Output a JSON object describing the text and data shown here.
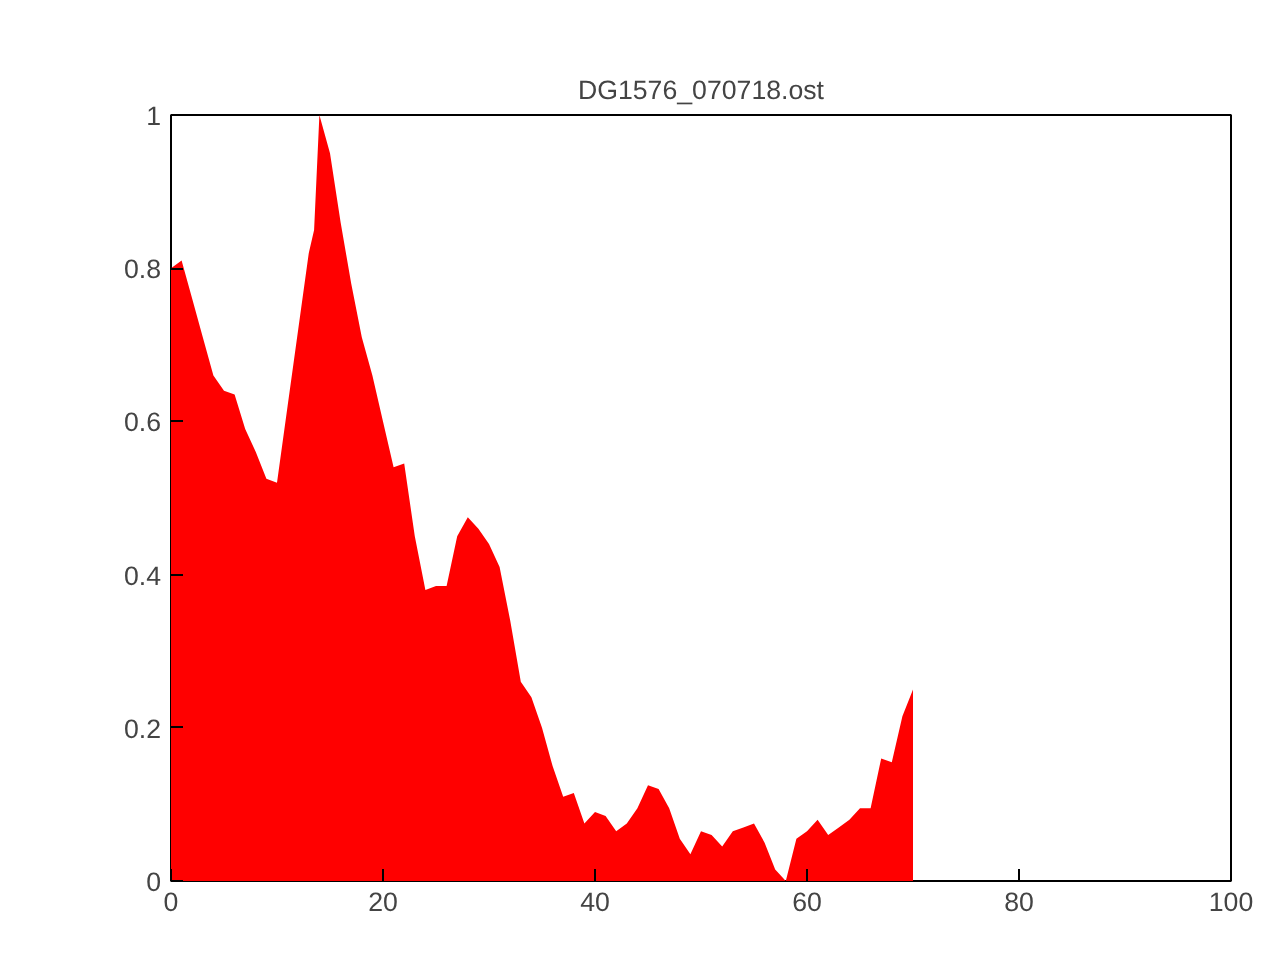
{
  "chart_data": {
    "type": "area",
    "title": "DG1576_070718.ost",
    "x": [
      0,
      1,
      2,
      3,
      4,
      5,
      6,
      7,
      8,
      9,
      10,
      11,
      12,
      13,
      13.5,
      14,
      15,
      16,
      17,
      18,
      19,
      20,
      21,
      22,
      23,
      24,
      25,
      26,
      27,
      28,
      29,
      30,
      31,
      32,
      33,
      34,
      35,
      36,
      37,
      38,
      39,
      40,
      41,
      42,
      43,
      44,
      45,
      46,
      47,
      48,
      49,
      50,
      51,
      52,
      53,
      54,
      55,
      56,
      57,
      58,
      59,
      60,
      61,
      62,
      63,
      64,
      65,
      66,
      67,
      68,
      69,
      70
    ],
    "series": [
      {
        "color": "#ff0000",
        "values": [
          0.8,
          0.81,
          0.76,
          0.71,
          0.66,
          0.64,
          0.635,
          0.59,
          0.56,
          0.525,
          0.52,
          0.62,
          0.72,
          0.82,
          0.85,
          1.0,
          0.95,
          0.86,
          0.78,
          0.71,
          0.66,
          0.6,
          0.54,
          0.545,
          0.45,
          0.38,
          0.385,
          0.385,
          0.45,
          0.475,
          0.46,
          0.44,
          0.41,
          0.34,
          0.26,
          0.24,
          0.2,
          0.15,
          0.11,
          0.115,
          0.075,
          0.09,
          0.085,
          0.065,
          0.075,
          0.095,
          0.125,
          0.12,
          0.095,
          0.055,
          0.035,
          0.065,
          0.06,
          0.045,
          0.065,
          0.07,
          0.075,
          0.05,
          0.015,
          0.0,
          0.055,
          0.065,
          0.08,
          0.06,
          0.07,
          0.08,
          0.095,
          0.095,
          0.16,
          0.155,
          0.215,
          0.25
        ]
      }
    ],
    "xlim": [
      0,
      100
    ],
    "xticks": [
      0,
      20,
      40,
      60,
      80,
      100
    ],
    "ylim": [
      0,
      1
    ],
    "yticks": [
      0,
      0.2,
      0.4,
      0.6,
      0.8,
      1
    ]
  }
}
